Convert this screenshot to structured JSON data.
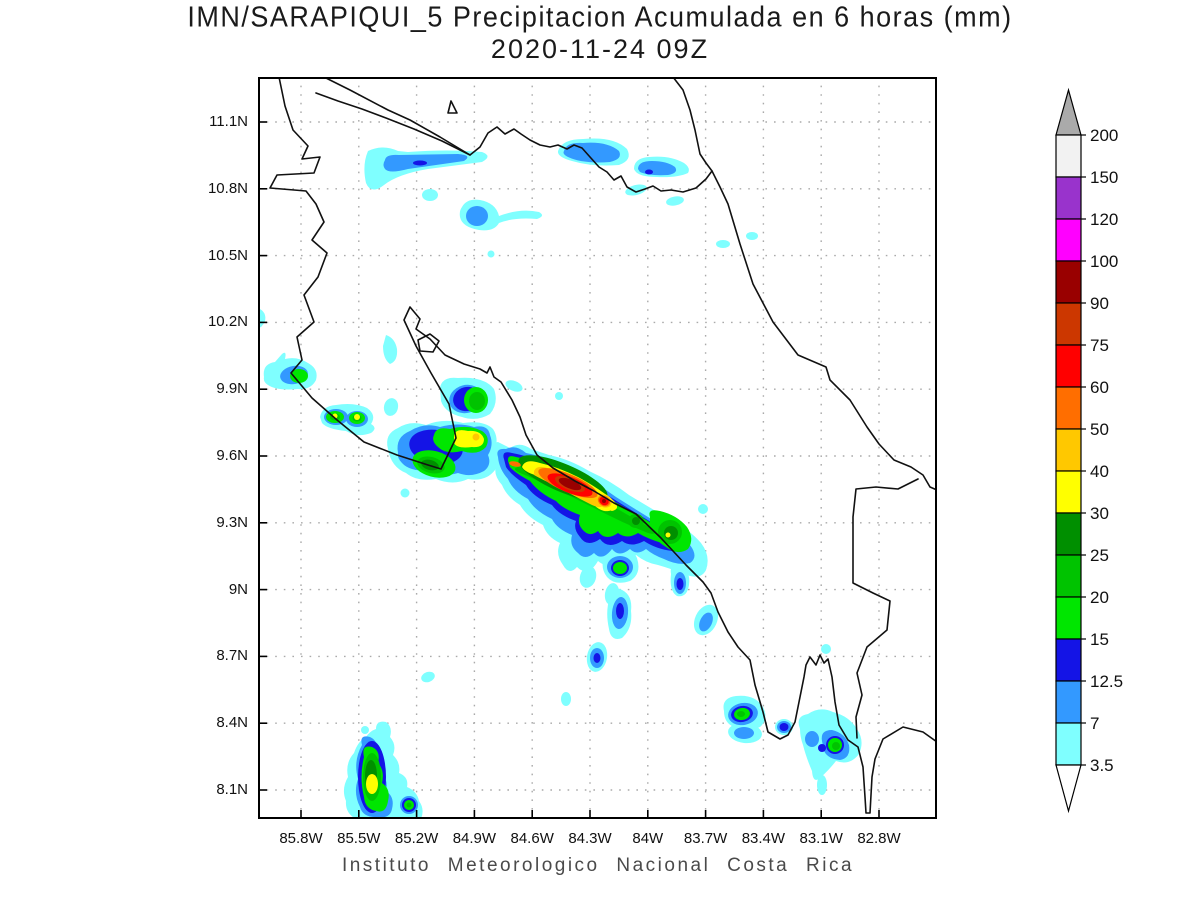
{
  "title": {
    "line1": "IMN/SARAPIQUI_5 Precipitacion Acumulada en 6 horas (mm)",
    "line2": "2020-11-24 09Z"
  },
  "footer": "Instituto Meteorologico Nacional Costa Rica",
  "axes": {
    "lat_labels": [
      "11.1N",
      "10.8N",
      "10.5N",
      "10.2N",
      "9.9N",
      "9.6N",
      "9.3N",
      "9N",
      "8.7N",
      "8.4N",
      "8.1N"
    ],
    "lon_labels": [
      "85.8W",
      "85.5W",
      "85.2W",
      "84.9W",
      "84.6W",
      "84.3W",
      "84W",
      "83.7W",
      "83.4W",
      "83.1W",
      "82.8W"
    ],
    "lat_range": [
      8.0,
      11.3
    ],
    "lon_range": [
      -86.0,
      -82.5
    ],
    "grid": "dotted 0.3 degree"
  },
  "palette": {
    "cyan": "#7FFFFF",
    "blue": "#3399FF",
    "navy": "#1414E6",
    "green1": "#00E600",
    "green2": "#00C300",
    "green3": "#008F00",
    "yellow": "#FFFF00",
    "gold": "#FFC800",
    "orange": "#FF6E00",
    "red": "#FF0000",
    "brick": "#CC3700",
    "darkred": "#990000",
    "magenta": "#FF00FF",
    "purple": "#9933CC",
    "white_hi": "#F2F2F2",
    "over": "#AAAAAA",
    "under": "#FFFFFF",
    "coastline": "#111111",
    "grid": "#AAAAAA"
  },
  "legend": {
    "boundaries": [
      "200",
      "150",
      "120",
      "100",
      "90",
      "75",
      "60",
      "50",
      "40",
      "30",
      "25",
      "20",
      "15",
      "12.5",
      "7",
      "3.5"
    ],
    "segment_colors_top_to_bottom": [
      "white_hi",
      "purple",
      "magenta",
      "darkred",
      "brick",
      "red",
      "orange",
      "gold",
      "yellow",
      "green3",
      "green2",
      "green1",
      "navy",
      "blue",
      "cyan"
    ],
    "over_arrow_color": "over",
    "under_arrow_color": "under"
  },
  "chart_data": {
    "type": "heatmap",
    "subtype": "filled-contour precipitation map",
    "title": "IMN/SARAPIQUI_5 Precipitacion Acumulada en 6 horas (mm)",
    "valid_time": "2020-11-24 09Z",
    "region": "Costa Rica",
    "xlabel_ticks_degW": [
      85.8,
      85.5,
      85.2,
      84.9,
      84.6,
      84.3,
      84.0,
      83.7,
      83.4,
      83.1,
      82.8
    ],
    "ylabel_ticks_degN": [
      11.1,
      10.8,
      10.5,
      10.2,
      9.9,
      9.6,
      9.3,
      9.0,
      8.7,
      8.4,
      8.1
    ],
    "contour_levels_mm": [
      3.5,
      7,
      12.5,
      15,
      20,
      25,
      30,
      40,
      50,
      60,
      75,
      90,
      100,
      120,
      150,
      200
    ],
    "precipitation_cells": [
      {
        "lat": 10.92,
        "lon_w": 85.15,
        "shape": "elongated E-W band with SW tail",
        "max_mm": "12.5-15"
      },
      {
        "lat": 10.95,
        "lon_w": 84.3,
        "shape": "small band",
        "max_mm": "7-12.5"
      },
      {
        "lat": 10.88,
        "lon_w": 83.95,
        "shape": "teardrop",
        "max_mm": "12.5-15"
      },
      {
        "lat": 10.67,
        "lon_w": 84.95,
        "shape": "cell with E tail",
        "max_mm": "7-12.5"
      },
      {
        "lat": 9.98,
        "lon_w": 85.75,
        "shape": "cell",
        "max_mm": "20-25"
      },
      {
        "lat": 9.78,
        "lon_w": 85.4,
        "shape": "two-lobed cell",
        "max_mm": "30-40"
      },
      {
        "lat": 9.85,
        "lon_w": 84.95,
        "shape": "cell over Gulf of Nicoya head",
        "max_mm": "20-25"
      },
      {
        "lat": 9.62,
        "lon_w": 84.88,
        "shape": "cluster with yellow/gold core",
        "max_mm": "40-50"
      },
      {
        "lat": 9.47,
        "lon_w": 84.4,
        "shape": "main SW-NE band along Pacific coast, dark-red core",
        "max_mm": "90-100"
      },
      {
        "lat": 9.42,
        "lon_w": 84.22,
        "shape": "secondary red core in band",
        "max_mm": "75-90"
      },
      {
        "lat": 9.28,
        "lon_w": 84.02,
        "shape": "green cells at band SE end",
        "max_mm": "25-30"
      },
      {
        "lat": 9.0,
        "lon_w": 84.25,
        "shape": "small cells",
        "max_mm": "12.5-15"
      },
      {
        "lat": 9.03,
        "lon_w": 83.85,
        "shape": "small cells near coast",
        "max_mm": "12.5-15"
      },
      {
        "lat": 8.45,
        "lon_w": 83.3,
        "shape": "cell on Osa Peninsula",
        "max_mm": "20-25"
      },
      {
        "lat": 8.27,
        "lon_w": 82.8,
        "shape": "cluster at Golfo Dulce mouth",
        "max_mm": "20-25"
      },
      {
        "lat": 8.2,
        "lon_w": 85.45,
        "shape": "tall cluster with yellow core",
        "max_mm": "30-40"
      },
      {
        "lat": 8.13,
        "lon_w": 85.25,
        "shape": "small green cell",
        "max_mm": "20-25"
      }
    ],
    "legend_position": "right",
    "grid": true
  }
}
